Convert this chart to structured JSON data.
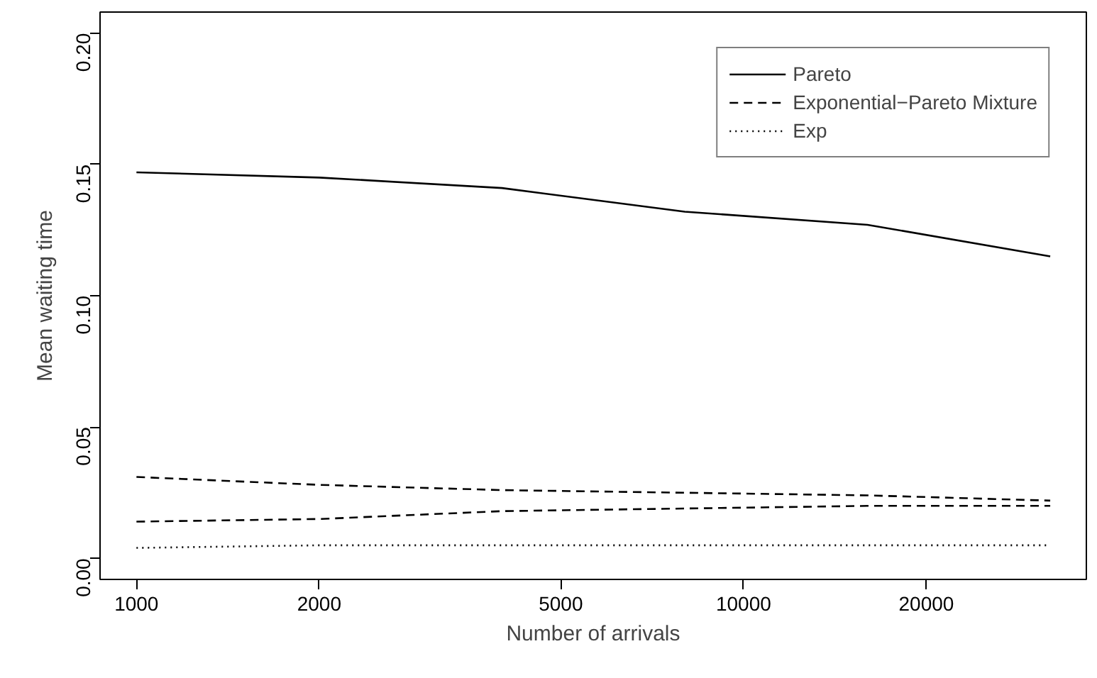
{
  "chart_data": {
    "type": "line",
    "xlabel": "Number of arrivals",
    "ylabel": "Mean waiting time",
    "log": "x",
    "x": [
      1000,
      2000,
      4000,
      8000,
      16000,
      32000
    ],
    "xlim": [
      871,
      36700
    ],
    "xticks": [
      1000,
      2000,
      5000,
      10000,
      20000
    ],
    "ylim": [
      -0.008,
      0.208
    ],
    "yticks": [
      {
        "value": 0,
        "label": "0.00"
      },
      {
        "value": 0.05,
        "label": "0.05"
      },
      {
        "value": 0.1,
        "label": "0.10"
      },
      {
        "value": 0.15,
        "label": "0.15"
      },
      {
        "value": 0.2,
        "label": "0.20"
      }
    ],
    "grid": false,
    "legend": "top right",
    "marker": "none",
    "series": [
      {
        "name": "Pareto",
        "color": "#000000",
        "line_style": "solid",
        "values": [
          0.147,
          0.145,
          0.141,
          0.132,
          0.127,
          0.115
        ]
      },
      {
        "name": "Exponential−Pareto Mixture",
        "color": "#000000",
        "line_style": "dashed",
        "values": [
          0.031,
          0.028,
          0.026,
          0.025,
          0.024,
          0.022
        ]
      },
      {
        "color": "#000000",
        "line_style": "dashed",
        "values": [
          0.014,
          0.015,
          0.018,
          0.019,
          0.02,
          0.02
        ]
      },
      {
        "name": "Exp",
        "color": "#000000",
        "line_style": "dotted",
        "values": [
          0.004,
          0.005,
          0.005,
          0.005,
          0.005,
          0.005
        ]
      }
    ]
  }
}
